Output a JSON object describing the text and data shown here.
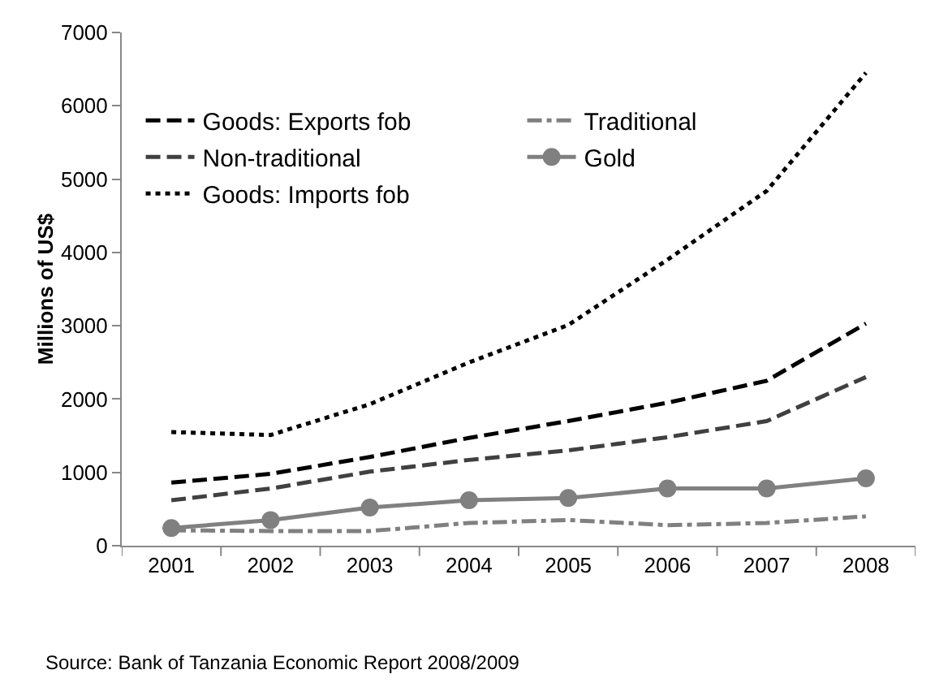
{
  "chart_data": {
    "type": "line",
    "ylabel": "Millions of US$",
    "categories": [
      "2001",
      "2002",
      "2003",
      "2004",
      "2005",
      "2006",
      "2007",
      "2008"
    ],
    "ylim": [
      0,
      7000
    ],
    "yticks": [
      0,
      1000,
      2000,
      3000,
      4000,
      5000,
      6000,
      7000
    ],
    "grid": false,
    "legend": "top left",
    "marker": "none",
    "series": [
      {
        "name": "Goods: Exports fob",
        "color": "#000000",
        "line_style": "dashed",
        "values": [
          860,
          980,
          1210,
          1470,
          1700,
          1950,
          2250,
          3030
        ]
      },
      {
        "name": "Traditional",
        "color": "#808080",
        "line_style": "dashdot",
        "values": [
          210,
          200,
          200,
          310,
          350,
          280,
          310,
          400
        ]
      },
      {
        "name": "Non-traditional",
        "color": "#404040",
        "line_style": "dashed",
        "values": [
          620,
          780,
          1010,
          1170,
          1300,
          1480,
          1700,
          2300
        ]
      },
      {
        "name": "Gold",
        "color": "#808080",
        "line_style": "solid",
        "marker": "circle",
        "values": [
          240,
          350,
          520,
          620,
          650,
          780,
          780,
          920
        ]
      },
      {
        "name": "Goods: Imports fob",
        "color": "#000000",
        "line_style": "dotted",
        "values": [
          1550,
          1510,
          1930,
          2500,
          3010,
          3900,
          4840,
          6450
        ]
      }
    ],
    "annotations": [
      "Source: Bank of Tanzania Economic Report 2008/2009"
    ]
  }
}
